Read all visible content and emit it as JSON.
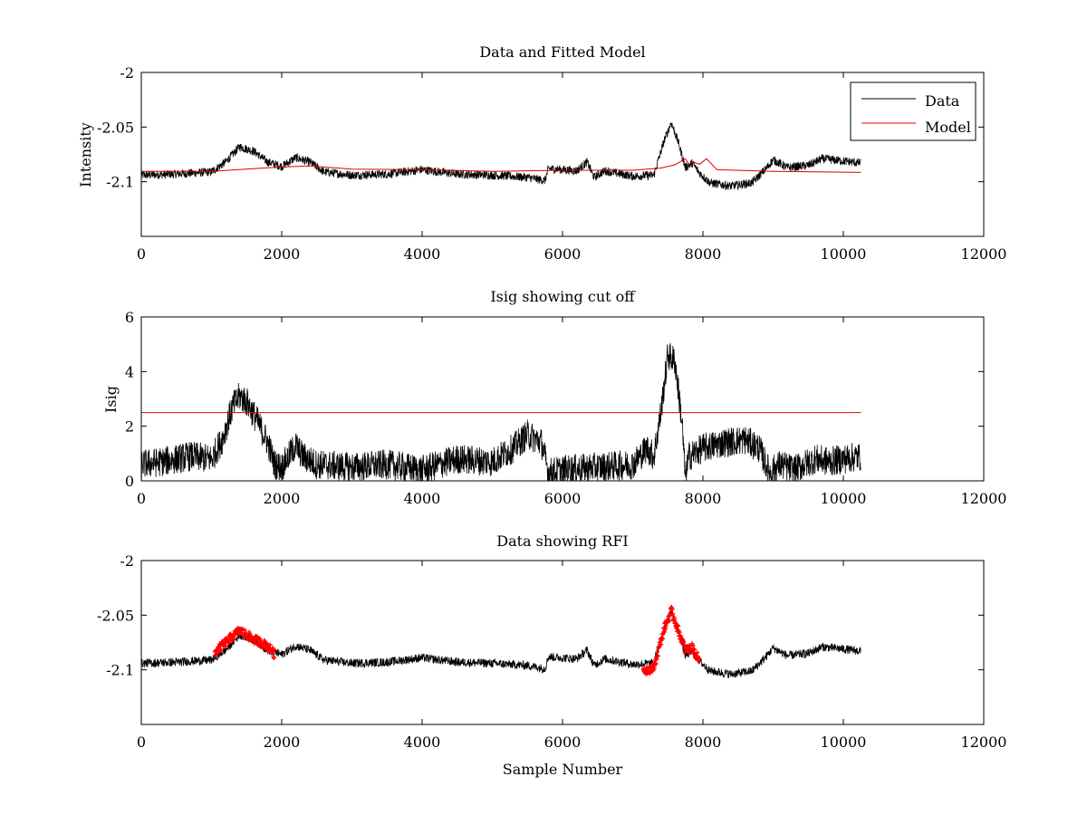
{
  "colors": {
    "data": "#000000",
    "model": "#e00000",
    "rfi": "#ff0000",
    "cutoff": "#e00000"
  },
  "chart_data": [
    {
      "id": "p1",
      "type": "line",
      "title": "Data and Fitted Model",
      "xlabel": "",
      "ylabel": "Intensity",
      "xlim": [
        0,
        12000
      ],
      "ylim": [
        -2.15,
        -2.0
      ],
      "xticks": [
        0,
        2000,
        4000,
        6000,
        8000,
        10000,
        12000
      ],
      "xtick_labels": [
        "0",
        "2000",
        "4000",
        "6000",
        "8000",
        "10000",
        "12000"
      ],
      "yticks": [
        -2.1,
        -2.05,
        -2.0
      ],
      "ytick_labels": [
        "-2.1",
        "-2.05",
        "-2"
      ],
      "legend": {
        "position": "top-right",
        "entries": [
          "Data",
          "Model"
        ]
      },
      "series": [
        {
          "name": "Data",
          "color_key": "data",
          "noise": 0.004,
          "x": [
            0,
            500,
            1000,
            1200,
            1400,
            1600,
            1800,
            2000,
            2200,
            2400,
            2600,
            3000,
            3500,
            4000,
            4500,
            5000,
            5500,
            5750,
            5800,
            6000,
            6200,
            6350,
            6450,
            6600,
            7000,
            7300,
            7450,
            7550,
            7650,
            7750,
            7850,
            7950,
            8100,
            8400,
            8700,
            8900,
            9000,
            9200,
            9500,
            9700,
            10000,
            10250
          ],
          "values": [
            -2.094,
            -2.093,
            -2.091,
            -2.082,
            -2.068,
            -2.072,
            -2.082,
            -2.086,
            -2.078,
            -2.082,
            -2.091,
            -2.094,
            -2.093,
            -2.089,
            -2.093,
            -2.094,
            -2.096,
            -2.099,
            -2.088,
            -2.089,
            -2.09,
            -2.082,
            -2.096,
            -2.09,
            -2.095,
            -2.094,
            -2.062,
            -2.046,
            -2.064,
            -2.087,
            -2.083,
            -2.092,
            -2.101,
            -2.104,
            -2.101,
            -2.088,
            -2.08,
            -2.087,
            -2.085,
            -2.079,
            -2.081,
            -2.083
          ]
        },
        {
          "name": "Model",
          "color_key": "model",
          "noise": 0,
          "x": [
            0,
            1000,
            1500,
            2000,
            2400,
            3000,
            4000,
            5000,
            6000,
            7000,
            7400,
            7600,
            7750,
            7800,
            7850,
            7950,
            8050,
            8200,
            9000,
            10250
          ],
          "values": [
            -2.0905,
            -2.0905,
            -2.0885,
            -2.0865,
            -2.0855,
            -2.0885,
            -2.089,
            -2.0905,
            -2.0895,
            -2.0895,
            -2.0875,
            -2.0845,
            -2.079,
            -2.084,
            -2.082,
            -2.084,
            -2.079,
            -2.089,
            -2.0905,
            -2.0915
          ]
        }
      ]
    },
    {
      "id": "p2",
      "type": "line",
      "title": "Isig showing cut off",
      "xlabel": "",
      "ylabel": "Isig",
      "xlim": [
        0,
        12000
      ],
      "ylim": [
        0,
        6
      ],
      "xticks": [
        0,
        2000,
        4000,
        6000,
        8000,
        10000,
        12000
      ],
      "xtick_labels": [
        "0",
        "2000",
        "4000",
        "6000",
        "8000",
        "10000",
        "12000"
      ],
      "yticks": [
        0,
        2,
        4,
        6
      ],
      "ytick_labels": [
        "0",
        "2",
        "4",
        "6"
      ],
      "series": [
        {
          "name": "Isig",
          "color_key": "data",
          "noise": 0.55,
          "min": 0,
          "x": [
            0,
            300,
            700,
            1000,
            1150,
            1300,
            1400,
            1500,
            1650,
            1800,
            1900,
            2000,
            2200,
            2300,
            2500,
            3000,
            3500,
            4000,
            4500,
            5000,
            5300,
            5500,
            5700,
            5800,
            6000,
            6500,
            7000,
            7200,
            7300,
            7400,
            7500,
            7600,
            7700,
            7750,
            7800,
            8000,
            8300,
            8600,
            8800,
            8950,
            9100,
            9300,
            9600,
            9800,
            10000,
            10250
          ],
          "values": [
            0.6,
            0.7,
            0.9,
            0.8,
            1.5,
            2.7,
            3.1,
            2.9,
            2.2,
            1.4,
            0.6,
            0.5,
            1.3,
            0.9,
            0.6,
            0.5,
            0.6,
            0.4,
            0.8,
            0.7,
            1.2,
            1.7,
            1.4,
            0.3,
            0.4,
            0.5,
            0.6,
            1.2,
            0.9,
            2.5,
            4.6,
            4.4,
            2.2,
            0.1,
            0.9,
            1.2,
            1.4,
            1.5,
            1.2,
            0.3,
            0.6,
            0.4,
            0.8,
            0.7,
            0.8,
            0.9
          ]
        },
        {
          "name": "Cut off",
          "color_key": "cutoff",
          "noise": 0,
          "x": [
            0,
            10250
          ],
          "values": [
            2.5,
            2.5
          ]
        }
      ]
    },
    {
      "id": "p3",
      "type": "scatter",
      "title": "Data showing RFI",
      "xlabel": "Sample Number",
      "ylabel": "",
      "xlim": [
        0,
        12000
      ],
      "ylim": [
        -2.15,
        -2.0
      ],
      "xticks": [
        0,
        2000,
        4000,
        6000,
        8000,
        10000,
        12000
      ],
      "xtick_labels": [
        "0",
        "2000",
        "4000",
        "6000",
        "8000",
        "10000",
        "12000"
      ],
      "yticks": [
        -2.1,
        -2.05,
        -2.0
      ],
      "ytick_labels": [
        "-2.1",
        "-2.05",
        "-2"
      ],
      "series": [
        {
          "name": "Data",
          "color_key": "data",
          "noise": 0.004,
          "x": [
            0,
            500,
            1000,
            1200,
            1400,
            1600,
            1800,
            2000,
            2200,
            2400,
            2600,
            3000,
            3500,
            4000,
            4500,
            5000,
            5500,
            5750,
            5800,
            6000,
            6200,
            6350,
            6450,
            6600,
            7000,
            7300,
            7450,
            7550,
            7650,
            7750,
            7850,
            7950,
            8100,
            8400,
            8700,
            8900,
            9000,
            9200,
            9500,
            9700,
            10000,
            10250
          ],
          "values": [
            -2.094,
            -2.093,
            -2.091,
            -2.082,
            -2.068,
            -2.072,
            -2.082,
            -2.086,
            -2.078,
            -2.082,
            -2.091,
            -2.094,
            -2.093,
            -2.089,
            -2.093,
            -2.094,
            -2.096,
            -2.099,
            -2.088,
            -2.089,
            -2.09,
            -2.082,
            -2.096,
            -2.09,
            -2.095,
            -2.094,
            -2.062,
            -2.046,
            -2.064,
            -2.087,
            -2.083,
            -2.092,
            -2.101,
            -2.104,
            -2.101,
            -2.088,
            -2.08,
            -2.087,
            -2.085,
            -2.079,
            -2.081,
            -2.083
          ]
        },
        {
          "name": "RFI",
          "color_key": "rfi",
          "marker": "plus",
          "noise": 0.004,
          "x": [
            1050,
            1200,
            1400,
            1600,
            1800,
            1900,
            7150,
            7300,
            7450,
            7550,
            7650,
            7750,
            7850,
            7950
          ],
          "values": [
            -2.084,
            -2.075,
            -2.064,
            -2.072,
            -2.078,
            -2.086,
            -2.101,
            -2.098,
            -2.062,
            -2.046,
            -2.064,
            -2.082,
            -2.08,
            -2.092
          ]
        }
      ]
    }
  ]
}
